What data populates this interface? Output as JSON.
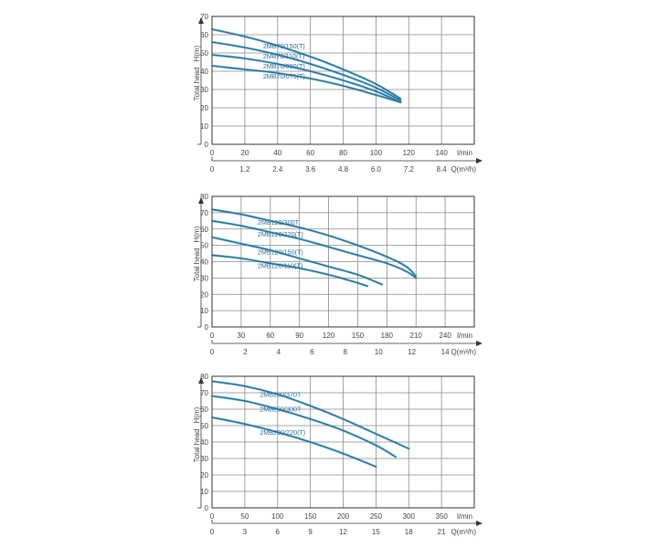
{
  "chart_data": [
    {
      "type": "line",
      "ylabel_main": "Total head",
      "ylabel_unit": "H(m)",
      "y_ticks": [
        0,
        10,
        20,
        30,
        40,
        50,
        60,
        70
      ],
      "ylim": [
        0,
        70
      ],
      "x_ticks": [
        0,
        20,
        40,
        60,
        80,
        100,
        120,
        140
      ],
      "xlim": [
        0,
        160
      ],
      "x_unit": "l/min",
      "x2_ticks": [
        "0",
        "1.2",
        "2.4",
        "3.6",
        "4.8",
        "6.0",
        "7.2",
        "8.4"
      ],
      "x2_unit": "Q(m³/h)",
      "grid": true,
      "series": [
        {
          "name": "2MB70/150(T)",
          "x": [
            0,
            20,
            40,
            60,
            80,
            100,
            115
          ],
          "y": [
            63,
            59,
            54,
            48,
            41,
            33,
            25
          ],
          "label_at": 30
        },
        {
          "name": "2MB70/110(T)",
          "x": [
            0,
            20,
            40,
            60,
            80,
            100,
            115
          ],
          "y": [
            56,
            53,
            49,
            44,
            38,
            31,
            24
          ],
          "label_at": 30
        },
        {
          "name": "2MB70/090(T)",
          "x": [
            0,
            20,
            40,
            60,
            80,
            100,
            115
          ],
          "y": [
            49,
            47,
            44,
            40,
            35,
            29,
            23
          ],
          "label_at": 30
        },
        {
          "name": "2MB70/075(T)",
          "x": [
            0,
            20,
            40,
            60,
            80,
            100,
            115
          ],
          "y": [
            43,
            41,
            39,
            36,
            32,
            27,
            23
          ],
          "label_at": 30
        }
      ]
    },
    {
      "type": "line",
      "ylabel_main": "Total head",
      "ylabel_unit": "H(m)",
      "y_ticks": [
        0,
        10,
        20,
        30,
        40,
        50,
        60,
        70,
        80
      ],
      "ylim": [
        0,
        80
      ],
      "x_ticks": [
        0,
        30,
        60,
        90,
        120,
        150,
        180,
        210,
        240
      ],
      "xlim": [
        0,
        270
      ],
      "x_unit": "l/min",
      "x2_ticks": [
        "0",
        "2",
        "4",
        "6",
        "8",
        "10",
        "12",
        "14"
      ],
      "x2_unit": "Q(m³/h)",
      "grid": true,
      "series": [
        {
          "name": "2MB120/300T",
          "x": [
            0,
            30,
            60,
            90,
            120,
            150,
            180,
            200,
            210
          ],
          "y": [
            72,
            69,
            65,
            61,
            56,
            50,
            43,
            37,
            31
          ],
          "label_at": 45
        },
        {
          "name": "2MB120/220(T)",
          "x": [
            0,
            30,
            60,
            90,
            120,
            150,
            180,
            200,
            210
          ],
          "y": [
            65,
            62,
            58,
            54,
            49,
            44,
            39,
            34,
            30
          ],
          "label_at": 45
        },
        {
          "name": "2MB120/150(T)",
          "x": [
            0,
            30,
            60,
            90,
            120,
            150,
            175
          ],
          "y": [
            55,
            51,
            47,
            42,
            37,
            32,
            26
          ],
          "label_at": 45
        },
        {
          "name": "2MB120/110(T)",
          "x": [
            0,
            30,
            60,
            90,
            120,
            150,
            160
          ],
          "y": [
            44,
            42,
            39,
            36,
            32,
            27,
            25
          ],
          "label_at": 45
        }
      ]
    },
    {
      "type": "line",
      "ylabel_main": "Total head",
      "ylabel_unit": "H(m)",
      "y_ticks": [
        0,
        10,
        20,
        30,
        40,
        50,
        60,
        70,
        80
      ],
      "ylim": [
        0,
        80
      ],
      "x_ticks": [
        0,
        50,
        100,
        150,
        200,
        250,
        300,
        350
      ],
      "xlim": [
        0,
        400
      ],
      "x_unit": "l/min",
      "x2_ticks": [
        "0",
        "3",
        "6",
        "9",
        "12",
        "15",
        "18",
        "21"
      ],
      "x2_unit": "Q(m³/h)",
      "grid": true,
      "series": [
        {
          "name": "2MB200/370T",
          "x": [
            0,
            50,
            100,
            150,
            200,
            250,
            300
          ],
          "y": [
            77,
            74,
            69,
            62,
            54,
            45,
            36
          ],
          "label_at": 70
        },
        {
          "name": "2MB200/300T",
          "x": [
            0,
            50,
            100,
            150,
            200,
            250,
            280
          ],
          "y": [
            68,
            65,
            60,
            54,
            47,
            38,
            31
          ],
          "label_at": 70
        },
        {
          "name": "2MB200/220(T)",
          "x": [
            0,
            50,
            100,
            150,
            200,
            250
          ],
          "y": [
            55,
            51,
            46,
            40,
            33,
            25
          ],
          "label_at": 70
        }
      ]
    }
  ],
  "colors": {
    "curve": "#1c6d96",
    "curve_light": "#3f93bd",
    "label": "#2a6f9a",
    "grid": "#8a8a8a",
    "axis": "#333333",
    "text": "#444444"
  }
}
